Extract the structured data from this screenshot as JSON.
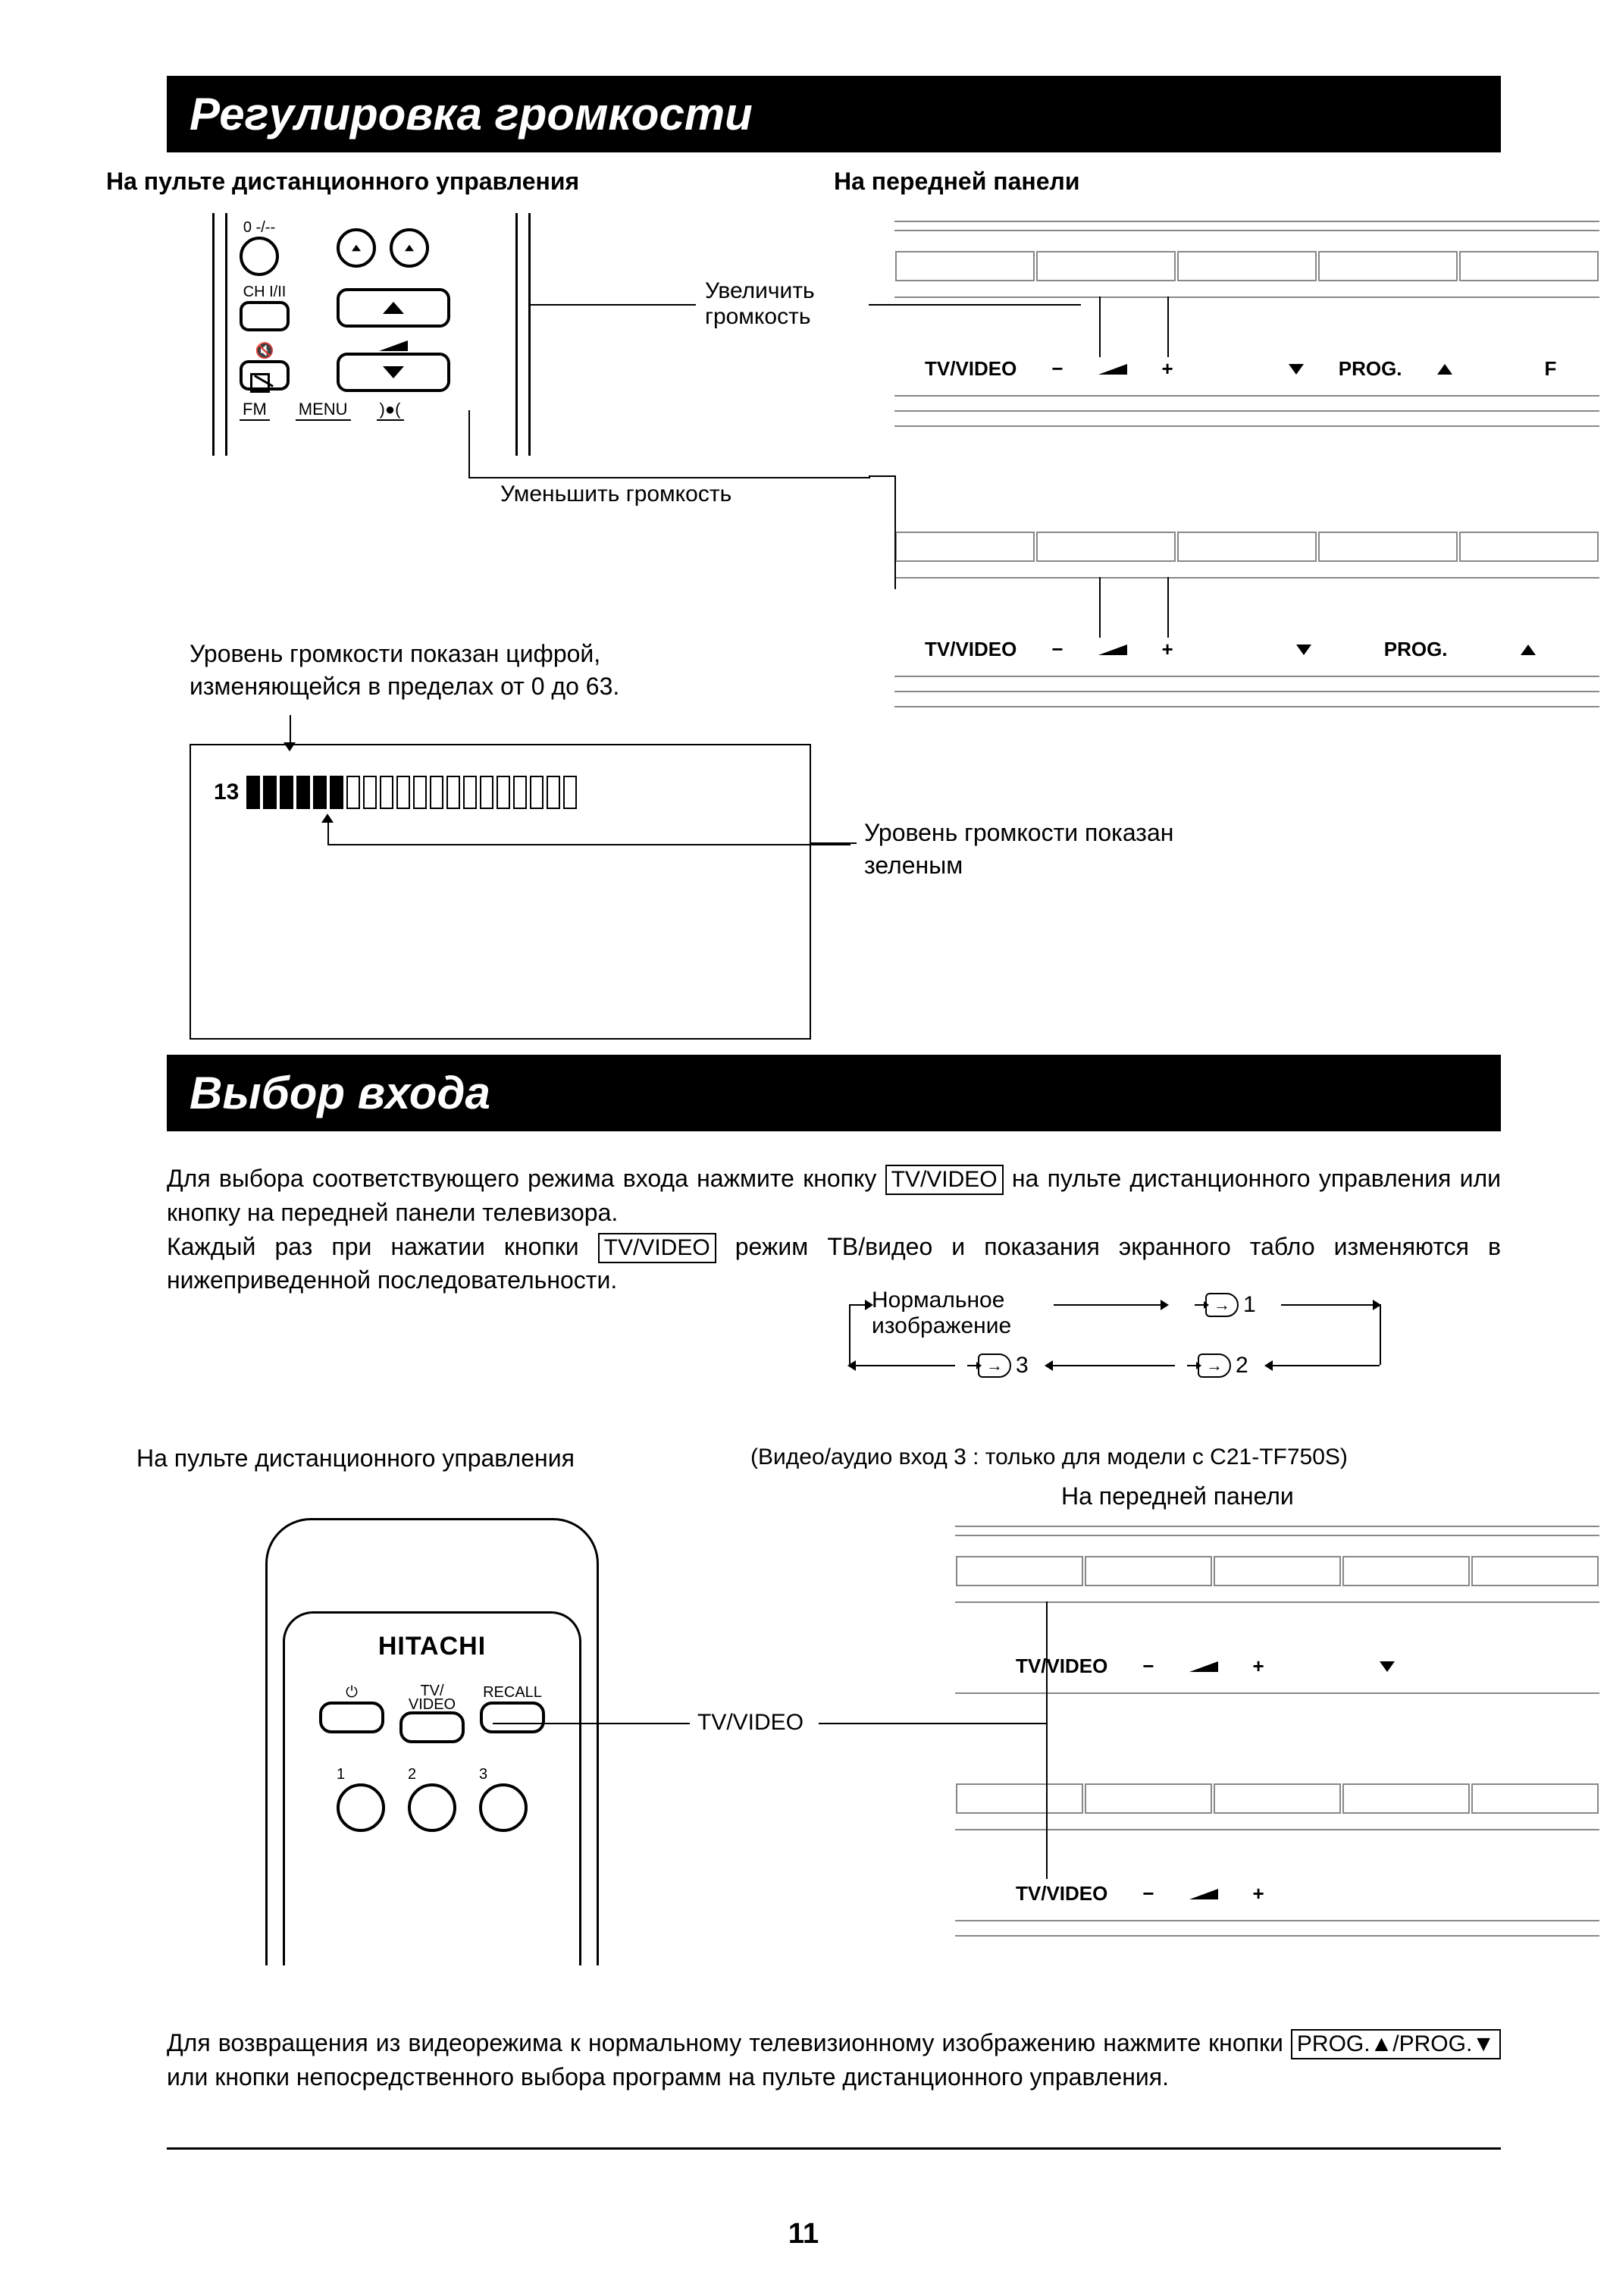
{
  "section1": {
    "title": "Регулировка громкости",
    "remote_caption": "На пульте дистанционного управления",
    "panel_caption": "На передней панели",
    "increase": "Увеличить громкость",
    "decrease": "Уменьшить громкость",
    "range_text": "Уровень громкости показан цифрой, изменяющейся в пределах от 0 до 63.",
    "green_text": "Уровень громкости показан зеленым",
    "remote": {
      "top_left_label": "0 -/--",
      "ch_label": "CH I/II",
      "fm": "FM",
      "menu": "MENU"
    },
    "volume_display": {
      "value": "13",
      "filled": 6,
      "total": 20
    },
    "panel_labels": {
      "tvvideo": "TV/VIDEO",
      "minus": "−",
      "plus": "+",
      "prog": "PROG.",
      "f": "F"
    }
  },
  "section2": {
    "title": "Выбор входа",
    "para1a": "Для выбора соответствующего режима входа нажмите кнопку ",
    "btn1": "TV/VIDEO",
    "para1b": " на пульте дистанционного управления или кнопку на передней панели телевизора.",
    "para2a": "Каждый раз при нажатии кнопки ",
    "btn2": "TV/VIDEO",
    "para2b": " режим ТВ/видео и показания экранного табло изменяются в нижеприведенной последовательности.",
    "cycle": {
      "normal": "Нормальное изображение",
      "in1": "1",
      "in2": "2",
      "in3": "3"
    },
    "remote_caption": "На пульте дистанционного управления",
    "model_note": "(Видео/аудио вход 3 : только для модели с C21-TF750S)",
    "panel_caption": "На передней панели",
    "remote": {
      "brand": "HITACHI",
      "tvvideo_small": "TV/\nVIDEO",
      "recall": "RECALL",
      "d1": "1",
      "d2": "2",
      "d3": "3"
    },
    "callout_tvvideo": "TV/VIDEO",
    "para3a": "Для возвращения из видеорежима к нормальному телевизионному изображению нажмите кнопки ",
    "btn3": "PROG.▲/PROG.▼",
    "para3b": " или кнопки непосредственного выбора программ на пульте дистанционного управления.",
    "panel_labels": {
      "tvvideo": "TV/VIDEO",
      "minus": "−",
      "plus": "+"
    }
  },
  "page_number": "11",
  "colors": {
    "bg": "#ffffff",
    "fg": "#000000",
    "grey": "#888888"
  }
}
